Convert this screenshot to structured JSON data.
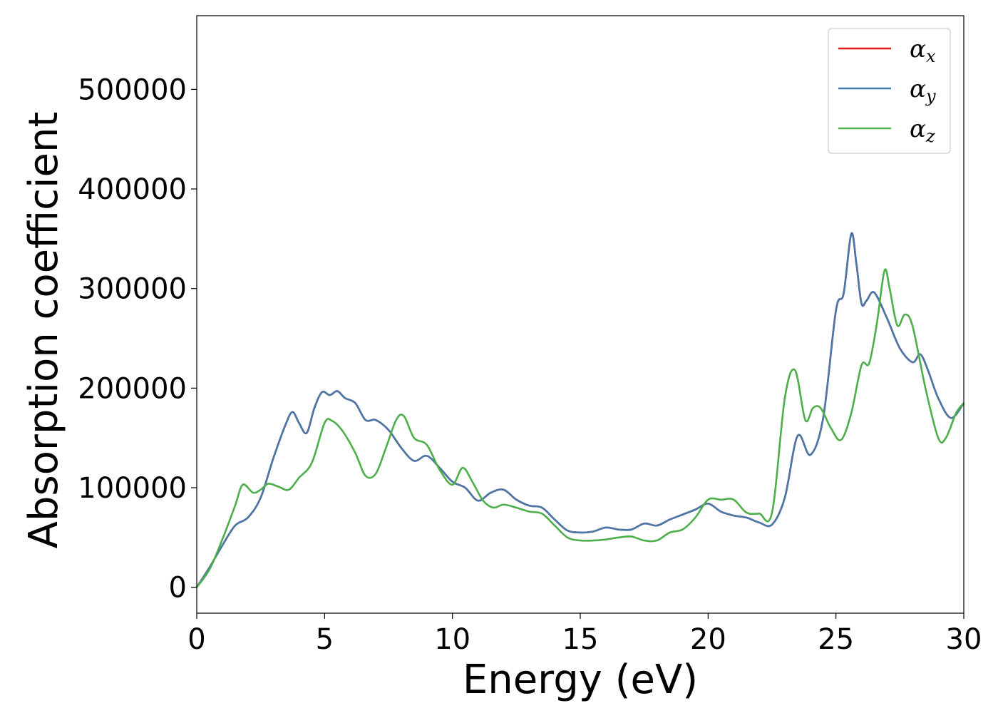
{
  "chart_data": {
    "type": "line",
    "title": "",
    "xlabel": "Energy (eV)",
    "ylabel": "Absorption coefficient",
    "xlim": [
      0,
      30
    ],
    "ylim": [
      -26000,
      574000
    ],
    "xticks": [
      0,
      5,
      10,
      15,
      20,
      25,
      30
    ],
    "yticks": [
      0,
      100000,
      200000,
      300000,
      400000,
      500000
    ],
    "grid": false,
    "legend_position": "top-right",
    "series": [
      {
        "name": "αx",
        "symbol": "α",
        "subscript": "x",
        "color": "#e41a1c",
        "x": [
          0,
          0.5,
          1.0,
          1.5,
          2.0,
          2.5,
          3.0,
          3.5,
          3.75,
          4.0,
          4.3,
          4.6,
          4.9,
          5.2,
          5.5,
          5.8,
          6.2,
          6.6,
          7.0,
          7.5,
          8.0,
          8.5,
          9.0,
          9.5,
          10.0,
          10.5,
          11.0,
          11.5,
          12.0,
          12.5,
          13.0,
          13.5,
          14.0,
          14.5,
          15.0,
          15.5,
          16.0,
          16.5,
          17.0,
          17.5,
          18.0,
          18.5,
          19.0,
          19.5,
          20.0,
          20.5,
          21.0,
          21.5,
          22.0,
          22.5,
          23.0,
          23.5,
          24.0,
          24.5,
          25.0,
          25.3,
          25.6,
          25.8,
          26.0,
          26.2,
          26.5,
          27.0,
          27.5,
          28.0,
          28.3,
          28.6,
          29.0,
          29.5,
          30.0
        ],
        "y": [
          0,
          20000,
          42000,
          62000,
          70000,
          90000,
          130000,
          165000,
          176000,
          165000,
          155000,
          180000,
          196000,
          193000,
          197000,
          190000,
          185000,
          168000,
          168000,
          158000,
          140000,
          127000,
          132000,
          120000,
          106000,
          100000,
          87000,
          95000,
          98000,
          88000,
          82000,
          80000,
          68000,
          57000,
          55000,
          56000,
          60000,
          58000,
          58000,
          64000,
          62000,
          68000,
          73000,
          78000,
          84000,
          76000,
          72000,
          70000,
          65000,
          63000,
          90000,
          152000,
          133000,
          170000,
          278000,
          295000,
          355000,
          325000,
          285000,
          288000,
          296000,
          270000,
          240000,
          226000,
          234000,
          218000,
          190000,
          170000,
          185000
        ]
      },
      {
        "name": "αy",
        "symbol": "α",
        "subscript": "y",
        "color": "#4878aa",
        "x": [
          0,
          0.5,
          1.0,
          1.5,
          2.0,
          2.5,
          3.0,
          3.5,
          3.75,
          4.0,
          4.3,
          4.6,
          4.9,
          5.2,
          5.5,
          5.8,
          6.2,
          6.6,
          7.0,
          7.5,
          8.0,
          8.5,
          9.0,
          9.5,
          10.0,
          10.5,
          11.0,
          11.5,
          12.0,
          12.5,
          13.0,
          13.5,
          14.0,
          14.5,
          15.0,
          15.5,
          16.0,
          16.5,
          17.0,
          17.5,
          18.0,
          18.5,
          19.0,
          19.5,
          20.0,
          20.5,
          21.0,
          21.5,
          22.0,
          22.5,
          23.0,
          23.5,
          24.0,
          24.5,
          25.0,
          25.3,
          25.6,
          25.8,
          26.0,
          26.2,
          26.5,
          27.0,
          27.5,
          28.0,
          28.3,
          28.6,
          29.0,
          29.5,
          30.0
        ],
        "y": [
          0,
          20000,
          42000,
          62000,
          70000,
          90000,
          130000,
          165000,
          176000,
          165000,
          155000,
          180000,
          196000,
          193000,
          197000,
          190000,
          185000,
          168000,
          168000,
          158000,
          140000,
          127000,
          132000,
          120000,
          106000,
          100000,
          87000,
          95000,
          98000,
          88000,
          82000,
          80000,
          68000,
          57000,
          55000,
          56000,
          60000,
          58000,
          58000,
          64000,
          62000,
          68000,
          73000,
          78000,
          84000,
          76000,
          72000,
          70000,
          65000,
          63000,
          90000,
          152000,
          133000,
          170000,
          278000,
          295000,
          355000,
          325000,
          285000,
          288000,
          296000,
          270000,
          240000,
          226000,
          234000,
          218000,
          190000,
          170000,
          185000
        ]
      },
      {
        "name": "αz",
        "symbol": "α",
        "subscript": "z",
        "color": "#4daf4a",
        "x": [
          0,
          0.5,
          1.0,
          1.5,
          1.8,
          2.2,
          2.5,
          2.8,
          3.2,
          3.6,
          4.0,
          4.5,
          5.0,
          5.3,
          5.7,
          6.2,
          6.6,
          7.0,
          7.4,
          7.8,
          8.1,
          8.5,
          9.0,
          9.5,
          10.0,
          10.4,
          10.8,
          11.2,
          11.6,
          12.0,
          12.5,
          13.0,
          13.5,
          14.0,
          14.5,
          15.0,
          15.5,
          16.0,
          16.5,
          17.0,
          17.5,
          18.0,
          18.5,
          19.0,
          19.5,
          20.0,
          20.5,
          21.0,
          21.5,
          22.0,
          22.5,
          23.0,
          23.4,
          23.8,
          24.1,
          24.4,
          24.8,
          25.2,
          25.6,
          26.0,
          26.3,
          26.6,
          26.9,
          27.1,
          27.4,
          27.7,
          28.0,
          28.5,
          29.0,
          29.3,
          29.7,
          30.0
        ],
        "y": [
          0,
          18000,
          48000,
          82000,
          103000,
          95000,
          98000,
          104000,
          101000,
          98000,
          110000,
          125000,
          165000,
          167000,
          157000,
          135000,
          112000,
          114000,
          140000,
          168000,
          172000,
          150000,
          143000,
          118000,
          103000,
          120000,
          105000,
          87000,
          80000,
          83000,
          80000,
          76000,
          74000,
          62000,
          50000,
          47000,
          47000,
          48000,
          50000,
          51000,
          47000,
          47000,
          55000,
          58000,
          70000,
          88000,
          88000,
          88000,
          75000,
          74000,
          75000,
          190000,
          218000,
          168000,
          180000,
          180000,
          160000,
          148000,
          175000,
          223000,
          225000,
          265000,
          318000,
          300000,
          263000,
          274000,
          262000,
          200000,
          150000,
          150000,
          175000,
          185000
        ]
      }
    ]
  }
}
